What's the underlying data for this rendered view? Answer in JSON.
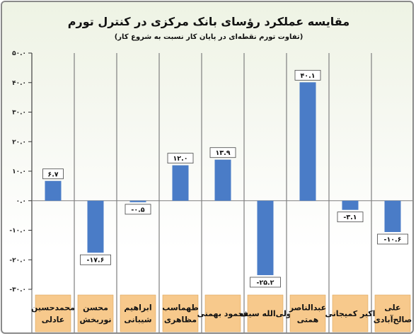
{
  "chart_data": {
    "type": "bar",
    "title": "مقایسه عملکرد رؤسای بانک مرکزی در کنترل تورم",
    "subtitle": "(تفاوت تورم نقطه‌ای در پایان کار نسبت به شروع کار)",
    "xlabel": "",
    "ylabel": "",
    "ylim": [
      -30,
      50
    ],
    "y_ticks": [
      50,
      40,
      30,
      20,
      10,
      0,
      -10,
      -20,
      -30
    ],
    "y_tick_labels": [
      "۵۰.۰",
      "۴۰.۰",
      "۳۰.۰",
      "۲۰.۰",
      "۱۰.۰",
      "۰.۰",
      "-۱۰.۰",
      "-۲۰.۰",
      "-۳۰.۰"
    ],
    "grid": true,
    "categories": [
      [
        "محمدحسین",
        "عادلی"
      ],
      [
        "محسن",
        "نوربخش"
      ],
      [
        "ابراهیم",
        "شیبانی"
      ],
      [
        "طهماسب",
        "مظاهری"
      ],
      [
        "محمود بهمنی"
      ],
      [
        "ولی‌الله سیف"
      ],
      [
        "عبدالناصر",
        "همتی"
      ],
      [
        "اکبر کمیجانی"
      ],
      [
        "علی",
        "صالح‌آبادی"
      ]
    ],
    "values": [
      6.7,
      -17.6,
      -0.5,
      12.0,
      13.9,
      -25.2,
      40.1,
      -3.1,
      -10.6
    ],
    "value_labels": [
      "۶.۷",
      "-۱۷.۶",
      "-۰.۵",
      "۱۲.۰",
      "۱۳.۹",
      "-۲۵.۲",
      "۴۰.۱",
      "-۳.۱",
      "-۱۰.۶"
    ],
    "colors": {
      "bar": "#4a7cc7",
      "category_box": "#f7c98c",
      "category_box_border": "#d9a55a",
      "grid": "#7f7f7f"
    }
  }
}
